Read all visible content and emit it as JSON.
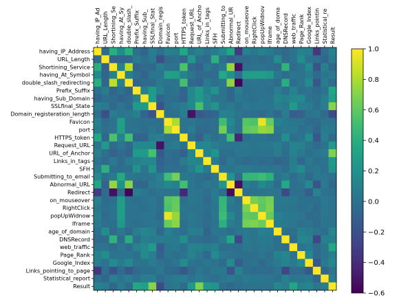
{
  "chart_data": {
    "type": "heatmap",
    "title": "",
    "xlabel": "",
    "ylabel": "",
    "x_tick_labels": [
      "having_IP_Ad",
      "URL_Length",
      "Shortining_Se",
      "having_At_Sy",
      "double_slash_",
      "Prefix_Suffix",
      "having_Sub_",
      "SSLfinal_Stat",
      "Domain_regis",
      "Favicon",
      "port",
      "HTTPS_token",
      "Request_URL",
      "URL_of_Ancho",
      "Links_in_tags",
      "SFH",
      "Submitting_to",
      "Abnormal_UR",
      "Redirect",
      "on_mouseove",
      "RightClick",
      "popUpWidnov",
      "Iframe",
      "age_of_doma",
      "DNSRecord",
      "web_traffic",
      "Page_Rank",
      "Google_Index",
      "Links_pointin",
      "Statistical_re",
      "Result"
    ],
    "labels": [
      "having_IP_Address",
      "URL_Length",
      "Shortining_Service",
      "having_At_Symbol",
      "double_slash_redirecting",
      "Prefix_Suffix",
      "having_Sub_Domain",
      "SSLfinal_State",
      "Domain_registeration_length",
      "Favicon",
      "port",
      "HTTPS_token",
      "Request_URL",
      "URL_of_Anchor",
      "Links_in_tags",
      "SFH",
      "Submitting_to_email",
      "Abnormal_URL",
      "Redirect",
      "on_mouseover",
      "RightClick",
      "popUpWidnow",
      "Iframe",
      "age_of_domain",
      "DNSRecord",
      "web_traffic",
      "Page_Rank",
      "Google_Index",
      "Links_pointing_to_page",
      "Statistical_report",
      "Result"
    ],
    "matrix": [
      [
        1.0,
        -0.05,
        0.4,
        0.16,
        0.4,
        -0.01,
        -0.08,
        0.07,
        -0.02,
        0.09,
        0.06,
        0.36,
        0.03,
        0.1,
        0.0,
        0.05,
        0.14,
        0.34,
        -0.32,
        0.09,
        0.04,
        0.1,
        0.05,
        -0.01,
        -0.05,
        0.0,
        0.1,
        0.08,
        -0.34,
        -0.02,
        0.09
      ],
      [
        -0.05,
        1.0,
        -0.1,
        -0.08,
        -0.08,
        0.06,
        -0.01,
        0.05,
        -0.22,
        -0.04,
        -0.01,
        -0.07,
        0.25,
        -0.02,
        -0.05,
        0.41,
        -0.01,
        -0.11,
        -0.04,
        -0.05,
        -0.01,
        -0.05,
        -0.01,
        0.18,
        -0.04,
        0.01,
        0.18,
        0.0,
        -0.02,
        -0.07,
        0.06
      ],
      [
        0.4,
        -0.1,
        1.0,
        0.1,
        0.84,
        -0.08,
        -0.04,
        -0.06,
        0.06,
        -0.0,
        0.0,
        0.54,
        -0.04,
        -0.1,
        0.05,
        -0.02,
        0.05,
        0.74,
        -0.53,
        -0.01,
        0.01,
        0.0,
        -0.01,
        -0.05,
        0.43,
        -0.05,
        0.01,
        0.16,
        -0.2,
        0.09,
        -0.07
      ],
      [
        0.16,
        -0.08,
        0.1,
        1.0,
        0.09,
        -0.01,
        -0.08,
        0.03,
        0.02,
        0.3,
        0.28,
        0.11,
        0.03,
        -0.04,
        -0.04,
        -0.03,
        0.37,
        0.2,
        -0.03,
        0.29,
        0.28,
        0.28,
        0.25,
        0.04,
        -0.03,
        0.03,
        0.01,
        0.06,
        -0.05,
        0.02,
        0.05
      ],
      [
        0.4,
        -0.08,
        0.84,
        0.09,
        1.0,
        -0.09,
        -0.04,
        -0.04,
        0.04,
        0.01,
        0.01,
        0.52,
        -0.06,
        -0.09,
        0.05,
        -0.02,
        0.04,
        0.72,
        -0.59,
        0.0,
        0.02,
        0.01,
        -0.0,
        -0.04,
        0.39,
        -0.03,
        0.02,
        0.16,
        -0.16,
        0.07,
        -0.04
      ],
      [
        -0.01,
        0.06,
        -0.08,
        -0.01,
        -0.09,
        1.0,
        0.09,
        0.26,
        0.1,
        -0.01,
        0.01,
        -0.08,
        0.15,
        0.26,
        0.1,
        0.21,
        0.01,
        -0.07,
        0.08,
        -0.01,
        -0.0,
        -0.0,
        -0.01,
        0.07,
        -0.02,
        0.11,
        -0.01,
        0.0,
        -0.04,
        0.0,
        0.35
      ],
      [
        -0.08,
        -0.01,
        -0.04,
        -0.08,
        -0.04,
        0.09,
        1.0,
        0.27,
        -0.08,
        -0.01,
        -0.03,
        -0.09,
        0.15,
        0.26,
        0.12,
        0.02,
        0.01,
        -0.07,
        0.04,
        0.0,
        -0.01,
        0.02,
        0.0,
        0.12,
        0.09,
        0.14,
        0.16,
        0.01,
        -0.01,
        0.08,
        0.3
      ],
      [
        0.07,
        0.05,
        -0.06,
        0.03,
        -0.04,
        0.26,
        0.27,
        1.0,
        -0.19,
        -0.01,
        0.02,
        0.06,
        0.15,
        0.53,
        0.12,
        0.22,
        0.03,
        0.05,
        -0.02,
        0.04,
        0.02,
        0.02,
        0.02,
        0.1,
        0.05,
        0.26,
        0.07,
        0.06,
        -0.01,
        0.07,
        0.71
      ],
      [
        -0.02,
        -0.22,
        0.06,
        0.02,
        0.04,
        0.1,
        -0.08,
        -0.19,
        1.0,
        -0.01,
        -0.02,
        0.08,
        -0.52,
        -0.15,
        -0.11,
        -0.07,
        0.09,
        0.07,
        0.03,
        -0.02,
        -0.01,
        -0.05,
        0.01,
        -0.06,
        0.06,
        -0.13,
        -0.1,
        -0.0,
        0.04,
        -0.05,
        -0.23
      ],
      [
        0.09,
        -0.04,
        -0.0,
        0.3,
        0.01,
        -0.01,
        -0.01,
        -0.01,
        -0.01,
        1.0,
        0.8,
        0.0,
        0.02,
        -0.01,
        -0.03,
        -0.01,
        0.5,
        0.15,
        -0.0,
        0.57,
        0.55,
        0.94,
        0.63,
        0.09,
        0.05,
        0.03,
        0.02,
        -0.03,
        -0.05,
        0.02,
        -0.0
      ],
      [
        0.06,
        -0.01,
        0.0,
        0.28,
        0.01,
        0.01,
        -0.03,
        0.02,
        -0.02,
        0.8,
        1.0,
        0.0,
        0.06,
        -0.04,
        -0.04,
        -0.02,
        0.66,
        0.09,
        -0.0,
        0.61,
        0.63,
        0.75,
        0.72,
        0.03,
        0.05,
        0.05,
        -0.01,
        0.02,
        -0.07,
        0.06,
        0.04
      ],
      [
        0.36,
        -0.07,
        0.54,
        0.11,
        0.52,
        -0.08,
        -0.09,
        0.06,
        0.08,
        0.0,
        0.0,
        1.0,
        -0.02,
        -0.1,
        0.06,
        -0.02,
        0.04,
        0.51,
        -0.42,
        -0.02,
        0.03,
        0.01,
        -0.01,
        -0.01,
        0.19,
        -0.01,
        -0.0,
        0.17,
        -0.16,
        0.07,
        -0.04
      ],
      [
        0.03,
        0.25,
        -0.04,
        0.03,
        -0.06,
        0.15,
        0.15,
        0.15,
        -0.52,
        0.02,
        0.06,
        -0.02,
        1.0,
        0.12,
        0.13,
        0.07,
        0.02,
        0.03,
        0.03,
        0.04,
        0.01,
        0.04,
        0.04,
        0.07,
        -0.02,
        0.11,
        0.11,
        0.01,
        -0.04,
        0.0,
        0.25
      ],
      [
        0.1,
        -0.02,
        -0.1,
        -0.04,
        -0.09,
        0.26,
        0.26,
        0.53,
        -0.15,
        -0.01,
        -0.04,
        -0.1,
        0.12,
        1.0,
        0.11,
        0.22,
        -0.02,
        -0.01,
        0.02,
        0.02,
        0.01,
        0.0,
        0.0,
        0.06,
        -0.02,
        0.1,
        0.04,
        -0.01,
        0.02,
        0.06,
        0.69
      ],
      [
        0.0,
        -0.05,
        0.05,
        -0.04,
        0.05,
        0.1,
        0.12,
        0.12,
        -0.11,
        -0.03,
        -0.04,
        0.06,
        0.13,
        0.11,
        1.0,
        0.05,
        -0.05,
        0.04,
        -0.02,
        -0.04,
        -0.01,
        -0.04,
        -0.03,
        -0.09,
        -0.05,
        0.06,
        -0.06,
        0.04,
        -0.02,
        0.0,
        0.25
      ],
      [
        0.05,
        0.41,
        -0.02,
        -0.03,
        -0.02,
        0.21,
        0.02,
        0.22,
        -0.07,
        -0.01,
        -0.02,
        -0.02,
        0.07,
        0.22,
        0.05,
        1.0,
        0.03,
        0.01,
        0.05,
        0.05,
        0.02,
        0.02,
        0.01,
        0.02,
        -0.03,
        0.1,
        0.16,
        -0.0,
        0.04,
        -0.02,
        0.22
      ],
      [
        0.14,
        -0.01,
        0.05,
        0.37,
        0.04,
        0.01,
        0.01,
        0.03,
        0.09,
        0.5,
        0.66,
        0.04,
        0.02,
        -0.02,
        -0.05,
        0.03,
        1.0,
        0.23,
        -0.03,
        0.45,
        0.46,
        0.49,
        0.41,
        0.01,
        0.06,
        -0.03,
        0.04,
        -0.04,
        0.04,
        0.02,
        -0.02
      ],
      [
        0.34,
        -0.11,
        0.74,
        0.2,
        0.72,
        -0.07,
        -0.07,
        0.05,
        0.07,
        0.15,
        0.09,
        0.51,
        0.03,
        -0.01,
        0.04,
        0.01,
        0.23,
        1.0,
        -0.54,
        0.07,
        0.02,
        0.15,
        0.07,
        -0.03,
        0.36,
        -0.02,
        -0.0,
        0.15,
        -0.18,
        0.05,
        -0.06
      ],
      [
        -0.32,
        -0.04,
        -0.53,
        -0.03,
        -0.59,
        0.08,
        0.04,
        -0.02,
        0.03,
        -0.0,
        -0.0,
        -0.42,
        0.03,
        0.02,
        -0.02,
        0.05,
        -0.03,
        -0.54,
        1.0,
        -0.02,
        0.01,
        0.01,
        0.02,
        0.02,
        -0.25,
        -0.01,
        -0.02,
        -0.13,
        0.11,
        -0.0,
        -0.02
      ],
      [
        0.09,
        -0.05,
        -0.01,
        0.29,
        0.0,
        -0.01,
        0.0,
        0.04,
        -0.02,
        0.57,
        0.61,
        -0.02,
        0.04,
        0.02,
        -0.04,
        0.05,
        0.45,
        0.07,
        -0.02,
        1.0,
        0.67,
        0.61,
        0.66,
        0.04,
        0.05,
        0.04,
        -0.01,
        -0.02,
        -0.01,
        0.05,
        -0.0
      ],
      [
        0.04,
        -0.01,
        0.01,
        0.28,
        0.02,
        -0.0,
        -0.01,
        0.02,
        -0.01,
        0.55,
        0.63,
        0.03,
        0.01,
        0.01,
        -0.01,
        0.02,
        0.46,
        0.02,
        0.01,
        0.67,
        1.0,
        0.59,
        0.69,
        0.03,
        0.03,
        0.01,
        -0.02,
        0.01,
        -0.05,
        0.04,
        0.01
      ],
      [
        0.1,
        -0.05,
        0.0,
        0.28,
        0.01,
        -0.0,
        0.02,
        0.02,
        -0.05,
        0.94,
        0.75,
        0.01,
        0.04,
        0.0,
        -0.04,
        0.02,
        0.49,
        0.15,
        0.01,
        0.61,
        0.59,
        1.0,
        0.63,
        0.09,
        0.05,
        0.04,
        0.02,
        -0.04,
        -0.03,
        0.03,
        0.0
      ],
      [
        0.05,
        -0.01,
        -0.01,
        0.25,
        -0.0,
        -0.01,
        0.0,
        0.02,
        0.01,
        0.63,
        0.72,
        -0.01,
        0.04,
        0.0,
        -0.03,
        0.01,
        0.41,
        0.07,
        0.02,
        0.66,
        0.69,
        0.63,
        1.0,
        0.06,
        0.05,
        0.03,
        -0.02,
        0.01,
        -0.04,
        0.03,
        -0.0
      ],
      [
        -0.01,
        0.18,
        -0.05,
        0.04,
        -0.04,
        0.07,
        0.12,
        0.1,
        -0.06,
        0.09,
        0.03,
        -0.01,
        0.07,
        0.06,
        -0.09,
        0.02,
        0.01,
        -0.03,
        0.02,
        0.04,
        0.03,
        0.09,
        0.06,
        1.0,
        -0.01,
        -0.01,
        0.1,
        0.05,
        0.01,
        -0.02,
        0.12
      ],
      [
        -0.05,
        -0.04,
        0.43,
        -0.03,
        0.39,
        -0.02,
        0.09,
        0.05,
        0.06,
        0.05,
        0.05,
        0.19,
        -0.02,
        -0.02,
        -0.05,
        -0.03,
        0.06,
        0.36,
        -0.25,
        0.05,
        0.03,
        0.05,
        0.05,
        -0.01,
        1.0,
        -0.04,
        0.13,
        0.11,
        -0.26,
        0.1,
        0.08
      ],
      [
        0.0,
        0.01,
        -0.05,
        0.03,
        -0.03,
        0.11,
        0.14,
        0.26,
        -0.13,
        0.03,
        0.05,
        -0.01,
        0.11,
        0.1,
        0.06,
        0.1,
        -0.03,
        -0.02,
        -0.01,
        0.04,
        0.01,
        0.04,
        0.03,
        -0.01,
        -0.04,
        1.0,
        0.01,
        0.05,
        -0.05,
        0.03,
        0.35
      ],
      [
        0.1,
        0.18,
        0.01,
        0.01,
        0.02,
        -0.01,
        0.16,
        0.07,
        -0.1,
        0.02,
        -0.01,
        -0.0,
        0.11,
        0.04,
        -0.06,
        0.16,
        0.04,
        -0.0,
        -0.02,
        -0.01,
        -0.02,
        0.02,
        -0.02,
        0.1,
        0.13,
        0.01,
        1.0,
        0.15,
        -0.05,
        0.02,
        0.1
      ],
      [
        0.08,
        0.0,
        0.16,
        0.06,
        0.16,
        0.0,
        0.01,
        0.06,
        -0.0,
        -0.03,
        0.02,
        0.17,
        0.01,
        -0.01,
        0.04,
        -0.0,
        -0.04,
        0.15,
        -0.13,
        -0.02,
        0.01,
        -0.04,
        0.01,
        0.05,
        0.11,
        0.05,
        0.15,
        1.0,
        -0.16,
        0.05,
        0.13
      ],
      [
        -0.34,
        -0.02,
        -0.2,
        -0.05,
        -0.16,
        -0.04,
        -0.01,
        -0.01,
        0.04,
        -0.05,
        -0.07,
        -0.16,
        -0.04,
        0.02,
        -0.02,
        0.04,
        0.04,
        -0.18,
        0.11,
        -0.01,
        -0.05,
        -0.03,
        -0.04,
        0.01,
        -0.26,
        -0.05,
        -0.05,
        -0.16,
        1.0,
        -0.08,
        0.03
      ],
      [
        -0.02,
        -0.07,
        0.09,
        0.02,
        0.07,
        0.0,
        0.08,
        0.07,
        -0.05,
        0.02,
        0.06,
        0.07,
        0.0,
        0.06,
        0.0,
        -0.02,
        0.02,
        0.05,
        -0.0,
        0.05,
        0.04,
        0.03,
        0.03,
        -0.02,
        0.1,
        0.03,
        0.02,
        0.05,
        -0.08,
        1.0,
        0.08
      ],
      [
        0.09,
        0.06,
        -0.07,
        0.05,
        -0.04,
        0.35,
        0.3,
        0.71,
        -0.23,
        -0.0,
        0.04,
        -0.04,
        0.25,
        0.69,
        0.25,
        0.22,
        -0.02,
        -0.06,
        -0.02,
        -0.0,
        0.01,
        0.0,
        -0.0,
        0.12,
        0.08,
        0.35,
        0.1,
        0.13,
        0.03,
        0.08,
        1.0
      ]
    ],
    "colormap": "viridis",
    "vmin": -0.6,
    "vmax": 1.0,
    "colorbar_ticks": [
      1.0,
      0.8,
      0.6,
      0.4,
      0.2,
      0.0,
      -0.2,
      -0.4,
      -0.6
    ],
    "colorbar_tick_labels": [
      "1.0",
      "0.8",
      "0.6",
      "0.4",
      "0.2",
      "0.0",
      "−0.2",
      "−0.4",
      "−0.6"
    ],
    "grid": false,
    "legend": "colorbar-right"
  }
}
